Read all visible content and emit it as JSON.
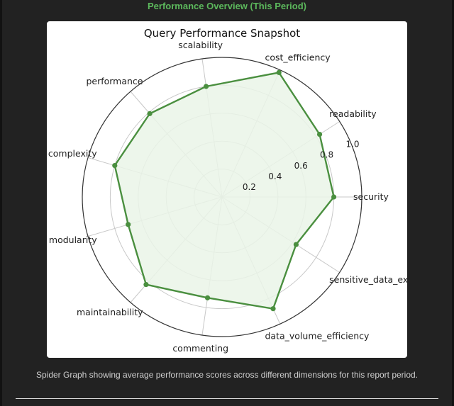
{
  "header": {
    "title": "Performance Overview (This Period)"
  },
  "caption": "Spider Graph showing average performance scores across different dimensions for this report period.",
  "chart_data": {
    "type": "radar",
    "title": "Query Performance Snapshot",
    "range": [
      0,
      1.0
    ],
    "ticks": [
      0.2,
      0.4,
      0.6,
      0.8,
      1.0
    ],
    "tick_labels": [
      "0.2",
      "0.4",
      "0.6",
      "0.8",
      "1.0"
    ],
    "grid": true,
    "categories": [
      "security",
      "readability",
      "cost_efficiency",
      "scalability",
      "performance",
      "complexity",
      "modularity",
      "maintainability",
      "commenting",
      "data_volume_efficiency",
      "sensitive_data_exposure"
    ],
    "values": [
      0.8,
      0.83,
      0.98,
      0.8,
      0.79,
      0.8,
      0.7,
      0.83,
      0.73,
      0.88,
      0.63
    ],
    "line_color": "#4a8f3f",
    "fill_color": "#eaf4e8"
  }
}
